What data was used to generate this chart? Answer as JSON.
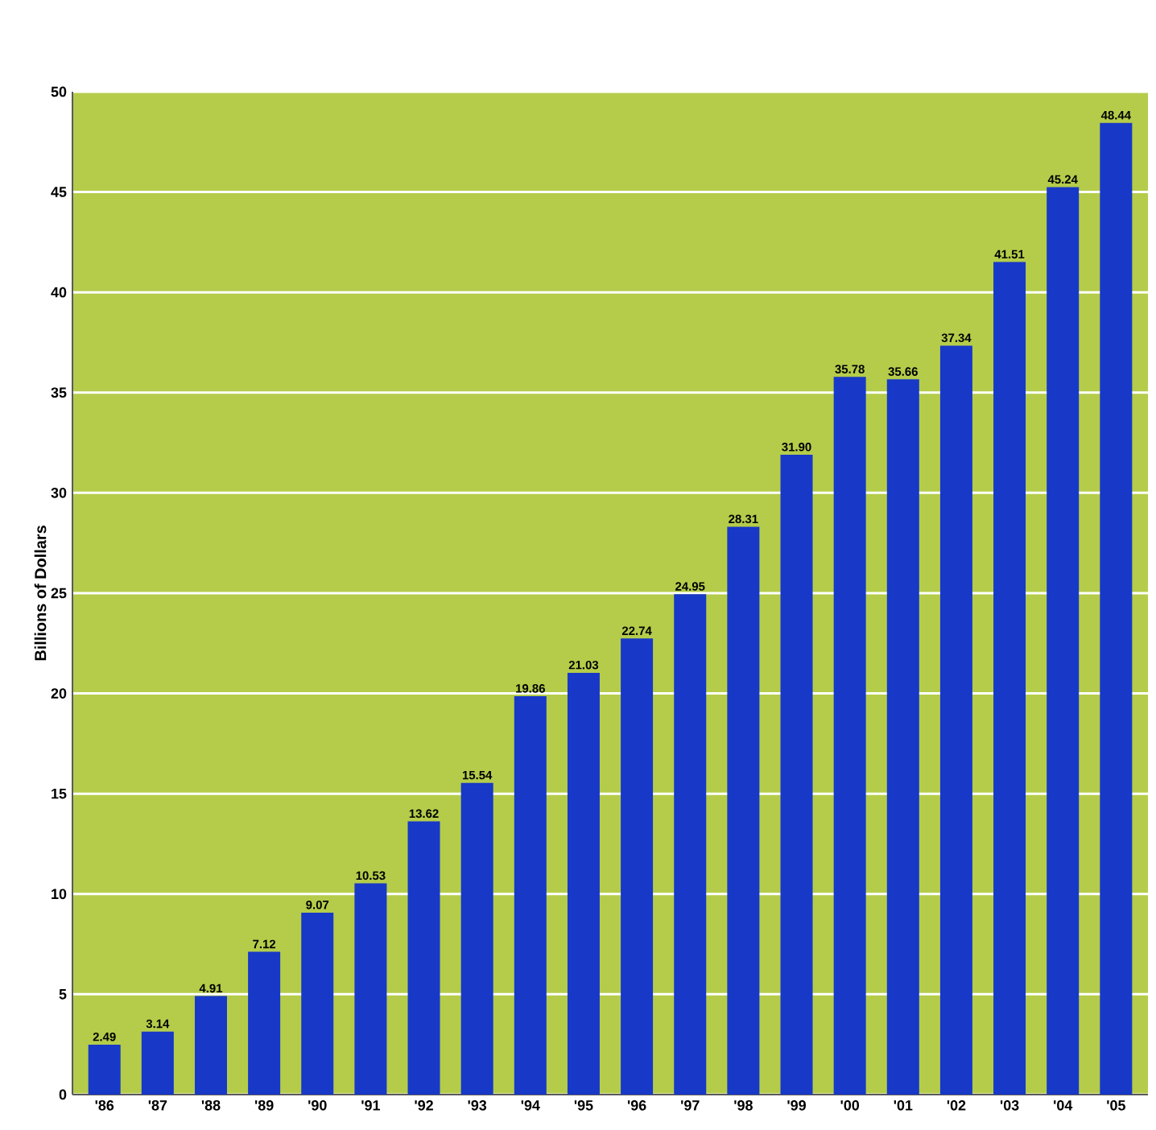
{
  "chart_data": {
    "type": "bar",
    "ylabel": "Billions of Dollars",
    "categories": [
      "'86",
      "'87",
      "'88",
      "'89",
      "'90",
      "'91",
      "'92",
      "'93",
      "'94",
      "'95",
      "'96",
      "'97",
      "'98",
      "'99",
      "'00",
      "'01",
      "'02",
      "'03",
      "'04",
      "'05"
    ],
    "values": [
      2.49,
      3.14,
      4.91,
      7.12,
      9.07,
      10.53,
      13.62,
      15.54,
      19.86,
      21.03,
      22.74,
      24.95,
      28.31,
      31.9,
      35.78,
      35.66,
      37.34,
      41.51,
      45.24,
      48.44
    ],
    "value_labels": [
      "2.49",
      "3.14",
      "4.91",
      "7.12",
      "9.07",
      "10.53",
      "13.62",
      "15.54",
      "19.86",
      "21.03",
      "22.74",
      "24.95",
      "28.31",
      "31.90",
      "35.78",
      "35.66",
      "37.34",
      "41.51",
      "45.24",
      "48.44"
    ],
    "color": "#1838c8",
    "ylim": [
      0,
      50
    ],
    "yticks": [
      0,
      5,
      10,
      15,
      20,
      25,
      30,
      35,
      40,
      45,
      50
    ],
    "grid": "y"
  }
}
